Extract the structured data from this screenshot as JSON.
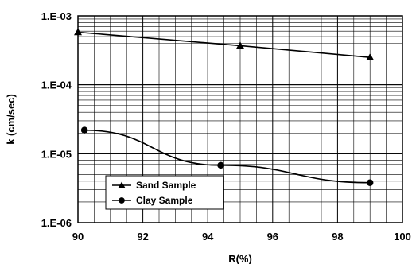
{
  "chart_data": {
    "type": "line",
    "title": "",
    "xlabel": "R(%)",
    "ylabel": "k (cm/sec)",
    "xlim": [
      90,
      100
    ],
    "ylim": [
      1e-06,
      0.001
    ],
    "y_scale": "log",
    "grid": true,
    "legend_position": "bottom-left",
    "x_ticks": [
      "90",
      "92",
      "94",
      "96",
      "98",
      "100"
    ],
    "y_ticks": [
      "1.E-06",
      "1.E-05",
      "1.E-04",
      "1.E-03"
    ],
    "series": [
      {
        "name": "Sand Sample",
        "marker": "triangle",
        "x": [
          90,
          95,
          99
        ],
        "y": [
          0.00058,
          0.00037,
          0.00025
        ]
      },
      {
        "name": "Clay Sample",
        "marker": "circle",
        "x": [
          90.2,
          94.4,
          99
        ],
        "y": [
          2.2e-05,
          6.8e-06,
          3.8e-06
        ]
      }
    ]
  }
}
